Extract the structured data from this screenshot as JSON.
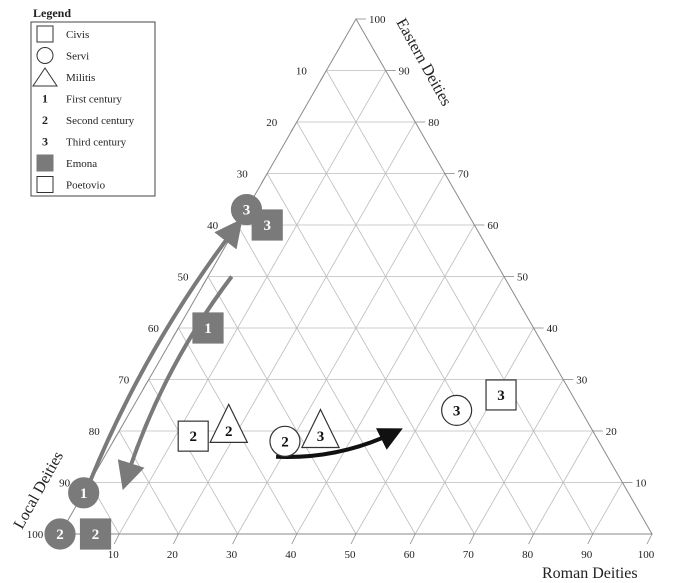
{
  "chart_data": {
    "type": "ternary-scatter",
    "axes": {
      "eastern": {
        "label": "Eastern Deities",
        "ticks": [
          "10",
          "20",
          "30",
          "40",
          "50",
          "60",
          "70",
          "80",
          "90",
          "100"
        ]
      },
      "local": {
        "label": "Local Deities",
        "ticks": [
          "10",
          "20",
          "30",
          "40",
          "50",
          "60",
          "70",
          "80",
          "90",
          "100"
        ]
      },
      "roman": {
        "label": "Roman Deities",
        "ticks": [
          "10",
          "20",
          "30",
          "40",
          "50",
          "60",
          "70",
          "80",
          "90",
          "100"
        ]
      }
    },
    "legend": {
      "title": "Legend",
      "items": [
        {
          "symbol": "square",
          "label": "Civis"
        },
        {
          "symbol": "circle",
          "label": "Servi"
        },
        {
          "symbol": "triangle",
          "label": "Militis"
        },
        {
          "symbol": "1",
          "label": "First century"
        },
        {
          "symbol": "2",
          "label": "Second century"
        },
        {
          "symbol": "3",
          "label": "Third century"
        },
        {
          "symbol": "filled-square",
          "label": "Emona"
        },
        {
          "symbol": "open-square",
          "label": "Poetovio"
        }
      ]
    },
    "points": [
      {
        "label": "1",
        "shape": "square",
        "fill": "grey",
        "eastern": 40,
        "local": 55,
        "roman": 5
      },
      {
        "label": "1",
        "shape": "circle",
        "fill": "grey",
        "eastern": 8,
        "local": 92,
        "roman": 0
      },
      {
        "label": "2",
        "shape": "circle",
        "fill": "grey",
        "eastern": 0,
        "local": 100,
        "roman": 0
      },
      {
        "label": "2",
        "shape": "square",
        "fill": "grey",
        "eastern": 0,
        "local": 94,
        "roman": 6
      },
      {
        "label": "3",
        "shape": "circle",
        "fill": "grey",
        "eastern": 63,
        "local": 37,
        "roman": 0
      },
      {
        "label": "3",
        "shape": "square",
        "fill": "grey",
        "eastern": 60,
        "local": 35,
        "roman": 5
      },
      {
        "label": "2",
        "shape": "square",
        "fill": "white",
        "eastern": 19,
        "local": 68,
        "roman": 13
      },
      {
        "label": "2",
        "shape": "triangle",
        "fill": "white",
        "eastern": 21,
        "local": 61,
        "roman": 18
      },
      {
        "label": "2",
        "shape": "circle",
        "fill": "white",
        "eastern": 18,
        "local": 53,
        "roman": 29
      },
      {
        "label": "3",
        "shape": "triangle",
        "fill": "white",
        "eastern": 20,
        "local": 46,
        "roman": 34
      },
      {
        "label": "3",
        "shape": "circle",
        "fill": "white",
        "eastern": 24,
        "local": 21,
        "roman": 55
      },
      {
        "label": "3",
        "shape": "square",
        "fill": "white",
        "eastern": 27,
        "local": 12,
        "roman": 61
      }
    ],
    "arrows": [
      {
        "color": "grey",
        "from": {
          "eastern": 10,
          "local": 90,
          "roman": 0
        },
        "to": {
          "eastern": 60,
          "local": 40,
          "roman": 0
        }
      },
      {
        "color": "grey",
        "from": {
          "eastern": 50,
          "local": 46,
          "roman": 4
        },
        "to": {
          "eastern": 10,
          "local": 84,
          "roman": 6
        }
      },
      {
        "color": "black",
        "from": {
          "eastern": 15,
          "local": 56,
          "roman": 29
        },
        "to": {
          "eastern": 20,
          "local": 33,
          "roman": 47
        }
      }
    ],
    "colors": {
      "grey": "#7a7a7a",
      "black": "#111111",
      "grid": "#bcbcbc",
      "frame": "#8a8a8a"
    }
  }
}
